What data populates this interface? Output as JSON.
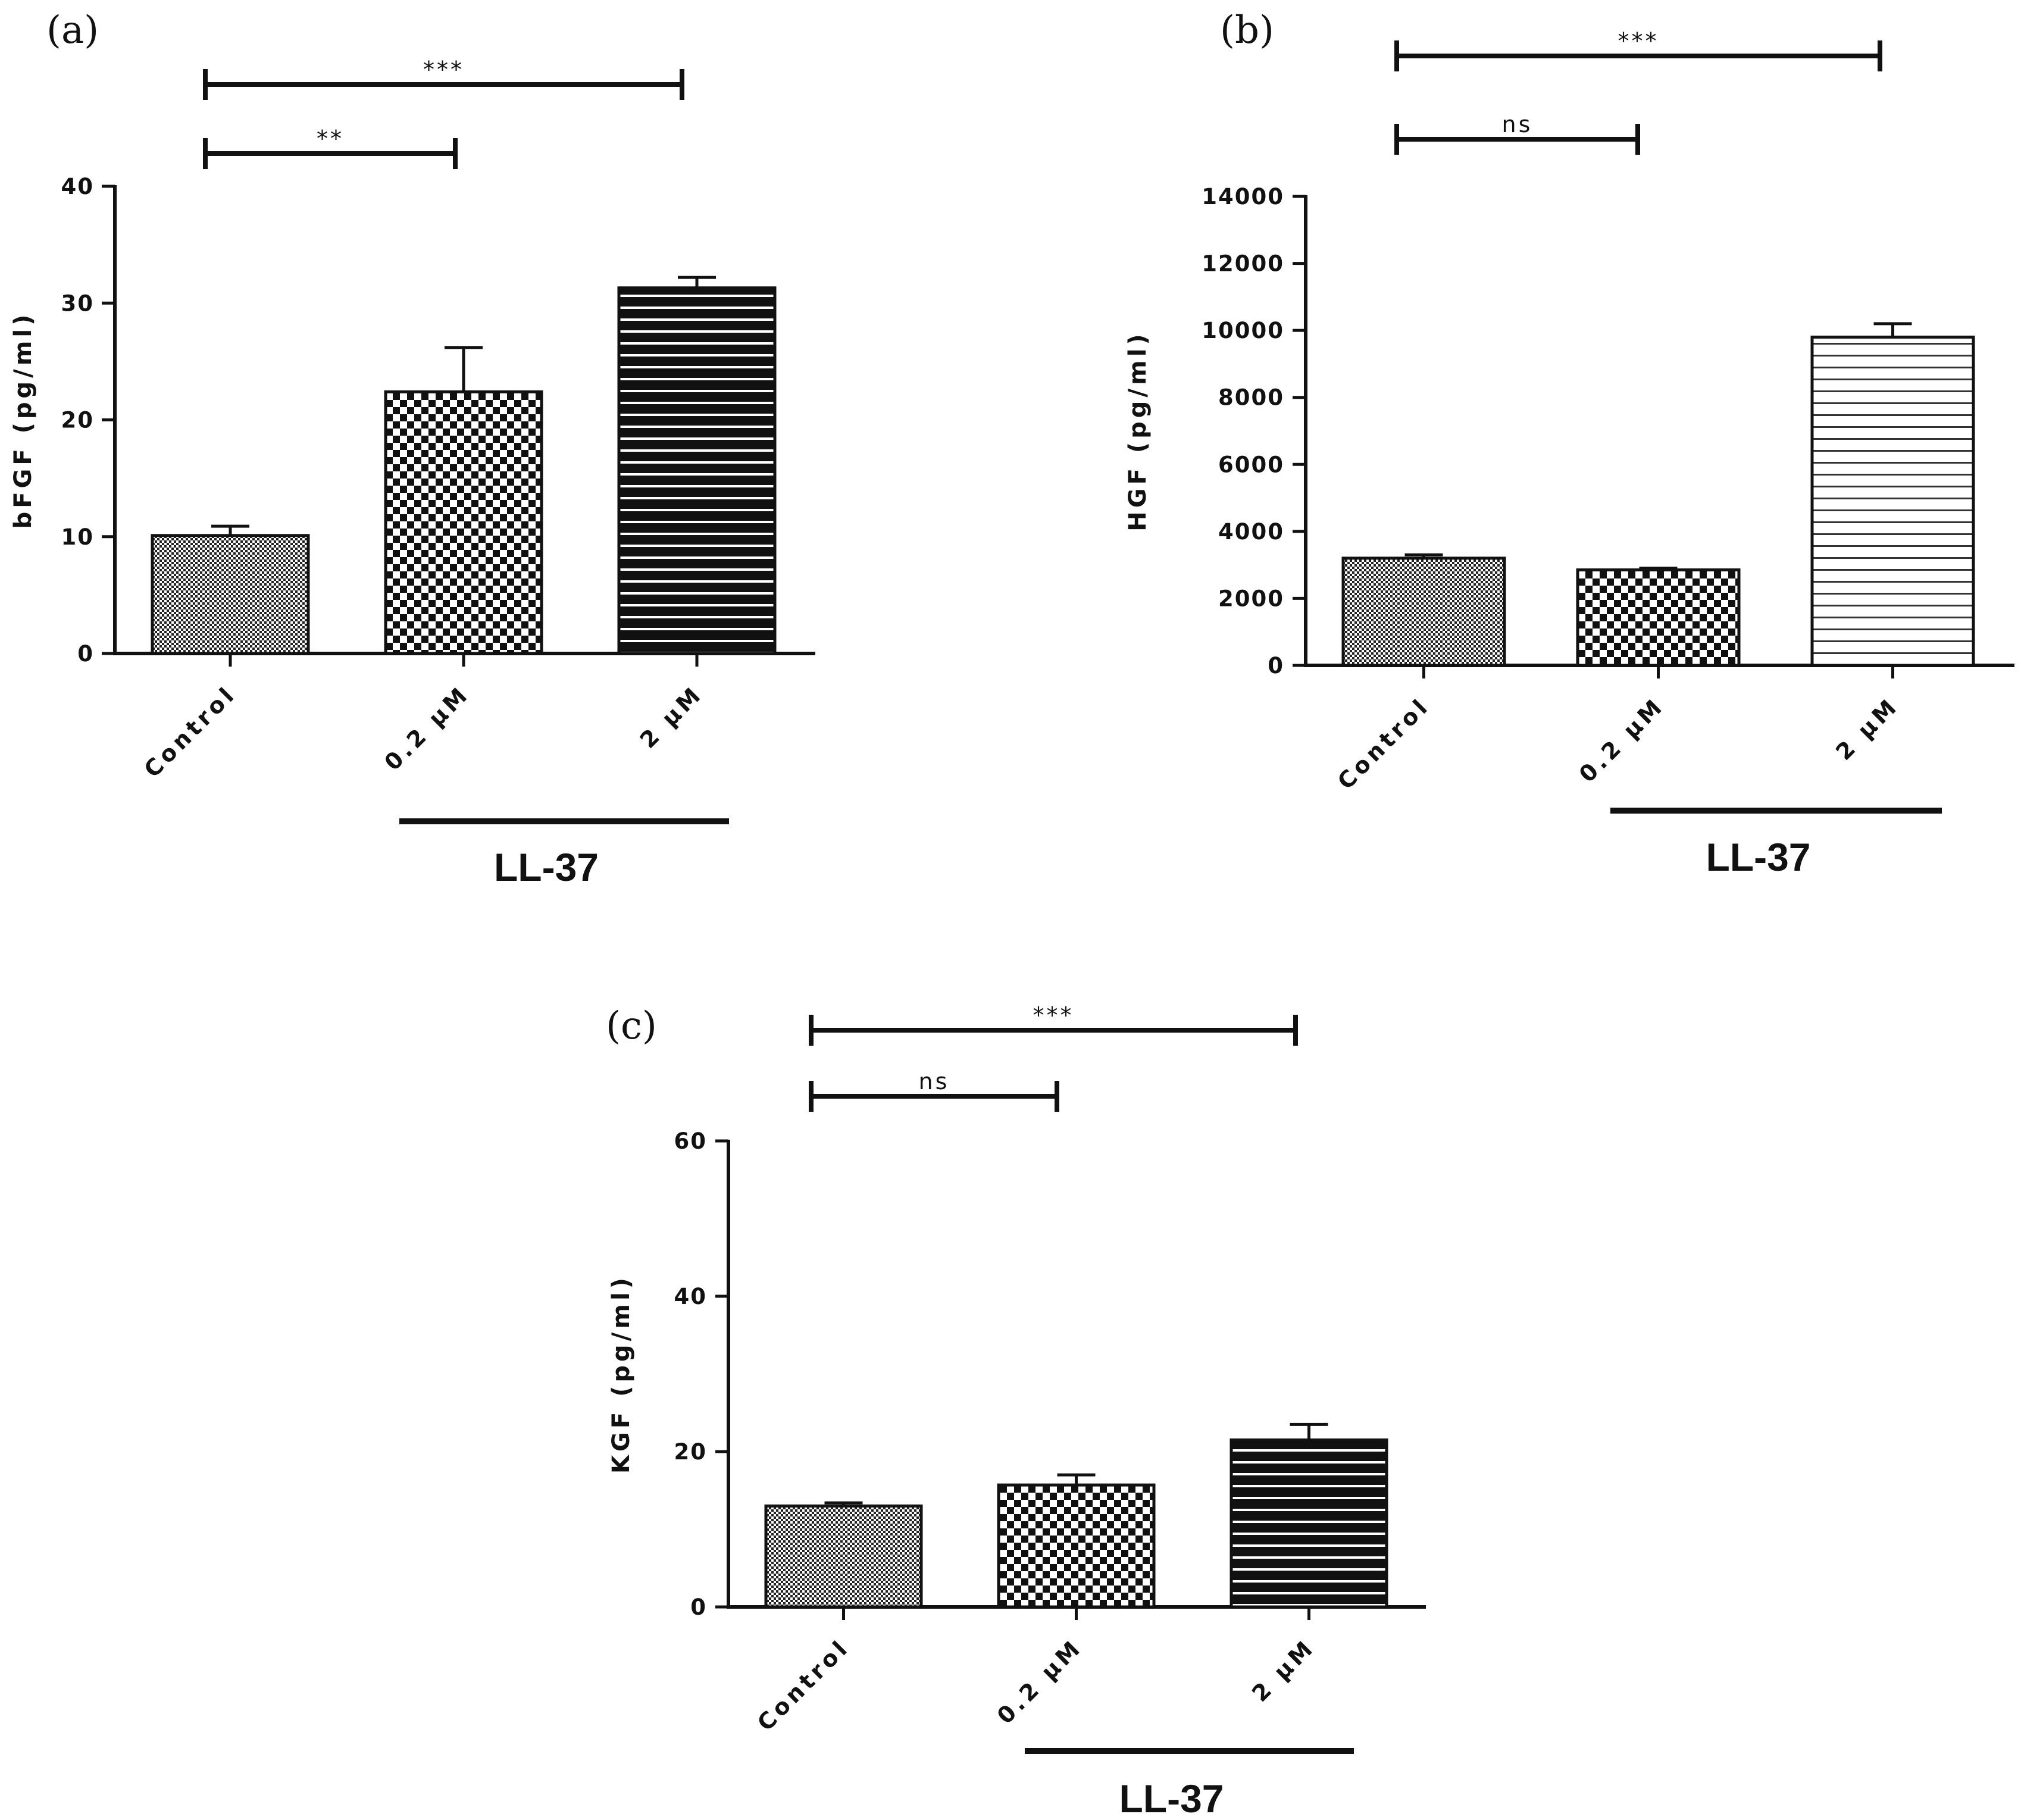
{
  "chart_data": [
    {
      "panel": "(a)",
      "type": "bar",
      "ylabel": "bFGF (pg/ml)",
      "xlabel": "",
      "categories": [
        "Control",
        "0.2 μM",
        "2 μM"
      ],
      "values": [
        10.1,
        22.4,
        31.3
      ],
      "errors": [
        0.8,
        3.8,
        0.9
      ],
      "ylim": [
        0,
        40
      ],
      "yticks": [
        0,
        10,
        20,
        30,
        40
      ],
      "patterns": [
        "fine-check",
        "checkerboard",
        "dark-stripes"
      ],
      "group_label": "LL-37",
      "significance": [
        {
          "from": 0,
          "to": 2,
          "label": "***"
        },
        {
          "from": 0,
          "to": 1,
          "label": "**"
        }
      ]
    },
    {
      "panel": "(b)",
      "type": "bar",
      "ylabel": "HGF (pg/ml)",
      "xlabel": "",
      "categories": [
        "Control",
        "0.2 μM",
        "2 μM"
      ],
      "values": [
        3200,
        2850,
        9800
      ],
      "errors": [
        100,
        50,
        400
      ],
      "ylim": [
        0,
        14000
      ],
      "yticks": [
        0,
        2000,
        4000,
        6000,
        8000,
        10000,
        12000,
        14000
      ],
      "patterns": [
        "fine-check",
        "checkerboard",
        "light-stripes"
      ],
      "group_label": "LL-37",
      "significance": [
        {
          "from": 0,
          "to": 2,
          "label": "***"
        },
        {
          "from": 0,
          "to": 1,
          "label": "ns"
        }
      ]
    },
    {
      "panel": "(c)",
      "type": "bar",
      "ylabel": "KGF (pg/ml)",
      "xlabel": "",
      "categories": [
        "Control",
        "0.2 μM",
        "2 μM"
      ],
      "values": [
        13.0,
        15.7,
        21.5
      ],
      "errors": [
        0.4,
        1.3,
        2.0
      ],
      "ylim": [
        0,
        60
      ],
      "yticks": [
        0,
        20,
        40,
        60
      ],
      "patterns": [
        "fine-check",
        "checkerboard",
        "dark-stripes"
      ],
      "group_label": "LL-37",
      "significance": [
        {
          "from": 0,
          "to": 2,
          "label": "***"
        },
        {
          "from": 0,
          "to": 1,
          "label": "ns"
        }
      ]
    }
  ],
  "colors": {
    "ink": "#111111",
    "background": "#ffffff"
  }
}
